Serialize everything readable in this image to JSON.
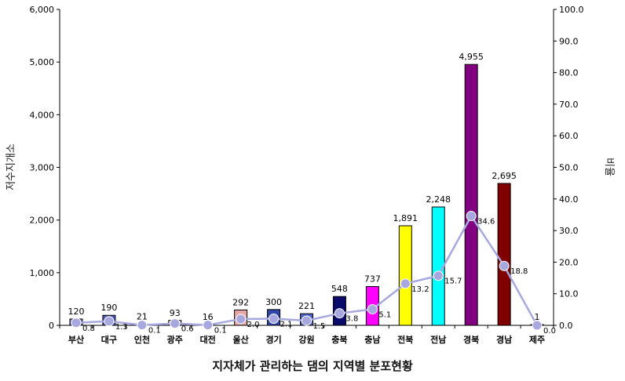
{
  "chart_data": {
    "type": "bar",
    "title": "지자체가 관리하는 댐의 지역별 분포현황",
    "xlabel": "",
    "ylabel": "저수지개소",
    "y2label": "비율",
    "categories": [
      "부산",
      "대구",
      "인천",
      "광주",
      "대전",
      "울산",
      "경기",
      "강원",
      "충북",
      "충남",
      "전북",
      "전남",
      "경북",
      "경남",
      "제주"
    ],
    "ylim": [
      0,
      6000
    ],
    "y2lim": [
      0,
      100
    ],
    "y_ticks": [
      "0",
      "1,000",
      "2,000",
      "3,000",
      "4,000",
      "5,000",
      "6,000"
    ],
    "y2_ticks": [
      "0.0",
      "10.0",
      "20.0",
      "30.0",
      "40.0",
      "50.0",
      "60.0",
      "70.0",
      "80.0",
      "90.0",
      "100.0"
    ],
    "grid": false,
    "series": [
      {
        "kind": "bar",
        "axis": "left",
        "values": [
          120,
          190,
          21,
          93,
          16,
          292,
          300,
          221,
          548,
          737,
          1891,
          2248,
          4955,
          2695,
          1
        ],
        "value_labels": [
          "120",
          "190",
          "21",
          "93",
          "16",
          "292",
          "300",
          "221",
          "548",
          "737",
          "1,891",
          "2,248",
          "4,955",
          "2,695",
          "1"
        ],
        "colors": [
          "#7f84c8",
          "#4b58b8",
          "#c8c8d8",
          "#e0e0ea",
          "#f2f2f2",
          "#e7a7a7",
          "#2f46a8",
          "#4f64c8",
          "#0a0a6a",
          "#ff00ff",
          "#ffff00",
          "#00ffff",
          "#800080",
          "#800000",
          "#e8e8f0"
        ]
      },
      {
        "kind": "line",
        "axis": "right",
        "values": [
          0.8,
          1.3,
          0.1,
          0.6,
          0.1,
          2.0,
          2.1,
          1.5,
          3.8,
          5.1,
          13.2,
          15.7,
          34.6,
          18.8,
          0.0
        ],
        "value_labels": [
          "0.8",
          "1.3",
          "0.1",
          "0.6",
          "0.1",
          "2.0",
          "2.1",
          "1.5",
          "3.8",
          "5.1",
          "13.2",
          "15.7",
          "34.6",
          "18.8",
          "0.0"
        ],
        "color": "#a8a8e0"
      }
    ]
  }
}
